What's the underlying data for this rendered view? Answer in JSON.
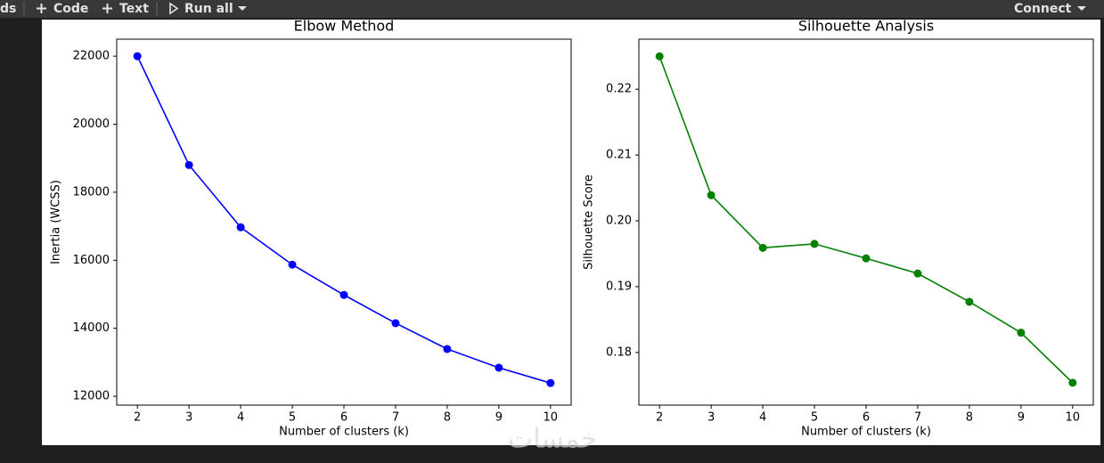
{
  "toolbar": {
    "left_text": "ds",
    "code": "Code",
    "text": "Text",
    "run_all": "Run all",
    "connect": "Connect"
  },
  "watermark": "خمسات",
  "chart_data": [
    {
      "type": "line",
      "title": "Elbow Method",
      "x_label": "Number of clusters (k)",
      "y_label": "Inertia (WCSS)",
      "x": [
        2,
        3,
        4,
        5,
        6,
        7,
        8,
        9,
        10
      ],
      "series": [
        {
          "name": "Inertia",
          "color": "#0000ff",
          "values": [
            22000,
            18800,
            16970,
            15870,
            14980,
            14150,
            13390,
            12840,
            12390
          ]
        }
      ],
      "xlim": [
        1.6,
        10.4
      ],
      "xticks": [
        2,
        3,
        4,
        5,
        6,
        7,
        8,
        9,
        10
      ],
      "ylim": [
        11740,
        22500
      ],
      "yticks": [
        12000,
        14000,
        16000,
        18000,
        20000,
        22000
      ],
      "grid": false
    },
    {
      "type": "line",
      "title": "Silhouette Analysis",
      "x_label": "Number of clusters (k)",
      "y_label": "Silhouette Score",
      "x": [
        2,
        3,
        4,
        5,
        6,
        7,
        8,
        9,
        10
      ],
      "series": [
        {
          "name": "Silhouette",
          "color": "#008000",
          "values": [
            0.225,
            0.2039,
            0.1959,
            0.1965,
            0.1943,
            0.192,
            0.1877,
            0.183,
            0.1754
          ]
        }
      ],
      "xlim": [
        1.6,
        10.4
      ],
      "xticks": [
        2,
        3,
        4,
        5,
        6,
        7,
        8,
        9,
        10
      ],
      "ylim": [
        0.172,
        0.2276
      ],
      "yticks": [
        0.18,
        0.19,
        {
          "value": 0.2,
          "label": "0.20"
        },
        0.21,
        0.22
      ],
      "grid": false
    }
  ]
}
